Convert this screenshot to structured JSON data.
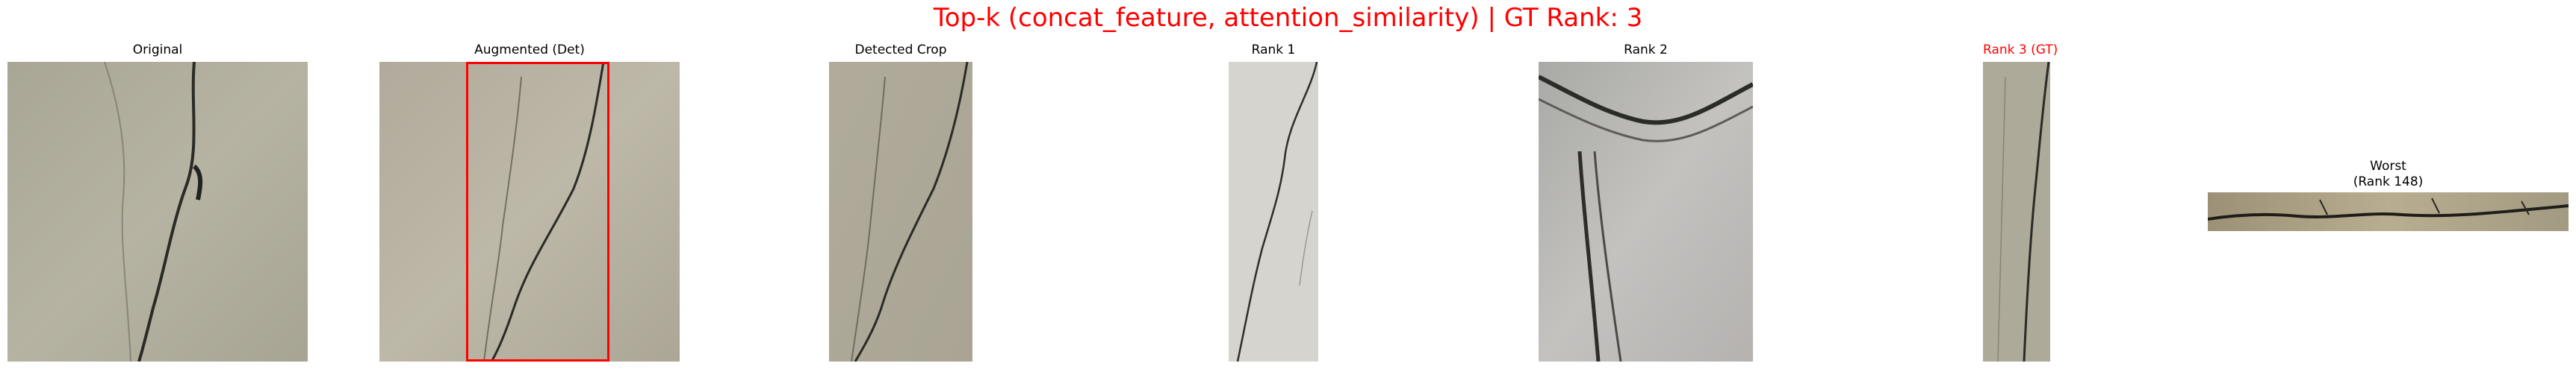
{
  "figure": {
    "suptitle": "Top-k (concat_feature, attention_similarity) | GT Rank: 3",
    "title_color": "#ff0000",
    "bbox_color": "#ff0000"
  },
  "panels": [
    {
      "title": "Original"
    },
    {
      "title": "Augmented (Det)"
    },
    {
      "title": "Detected Crop"
    },
    {
      "title": "Rank 1"
    },
    {
      "title": "Rank 2"
    },
    {
      "title": "Rank 3 (GT)"
    },
    {
      "title_line1": "Worst",
      "title_line2": "(Rank 148)"
    }
  ]
}
